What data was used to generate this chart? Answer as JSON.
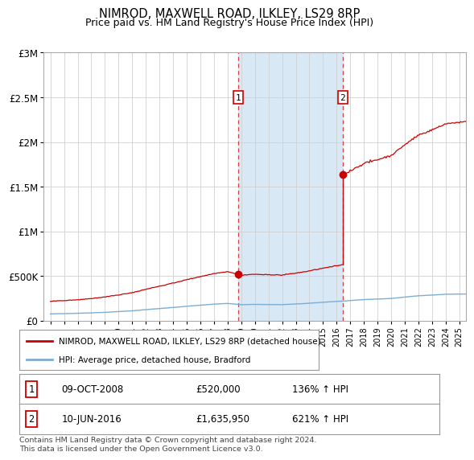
{
  "title": "NIMROD, MAXWELL ROAD, ILKLEY, LS29 8RP",
  "subtitle": "Price paid vs. HM Land Registry's House Price Index (HPI)",
  "legend_line1": "NIMROD, MAXWELL ROAD, ILKLEY, LS29 8RP (detached house)",
  "legend_line2": "HPI: Average price, detached house, Bradford",
  "point1_label": "1",
  "point1_date": "09-OCT-2008",
  "point1_price": "£520,000",
  "point1_hpi": "136% ↑ HPI",
  "point2_label": "2",
  "point2_date": "10-JUN-2016",
  "point2_price": "£1,635,950",
  "point2_hpi": "621% ↑ HPI",
  "footer": "Contains HM Land Registry data © Crown copyright and database right 2024.\nThis data is licensed under the Open Government Licence v3.0.",
  "red_color": "#cc0000",
  "blue_color": "#7dadd4",
  "shade_color": "#d8e8f5",
  "grid_color": "#d0d0d0",
  "background_color": "#ffffff",
  "point1_x": 2008.79,
  "point1_y": 520000,
  "point2_x": 2016.44,
  "point2_y": 1635950,
  "shade_x1": 2008.79,
  "shade_x2": 2016.44,
  "ylim": [
    0,
    3000000
  ],
  "xlim": [
    1994.5,
    2025.5
  ]
}
